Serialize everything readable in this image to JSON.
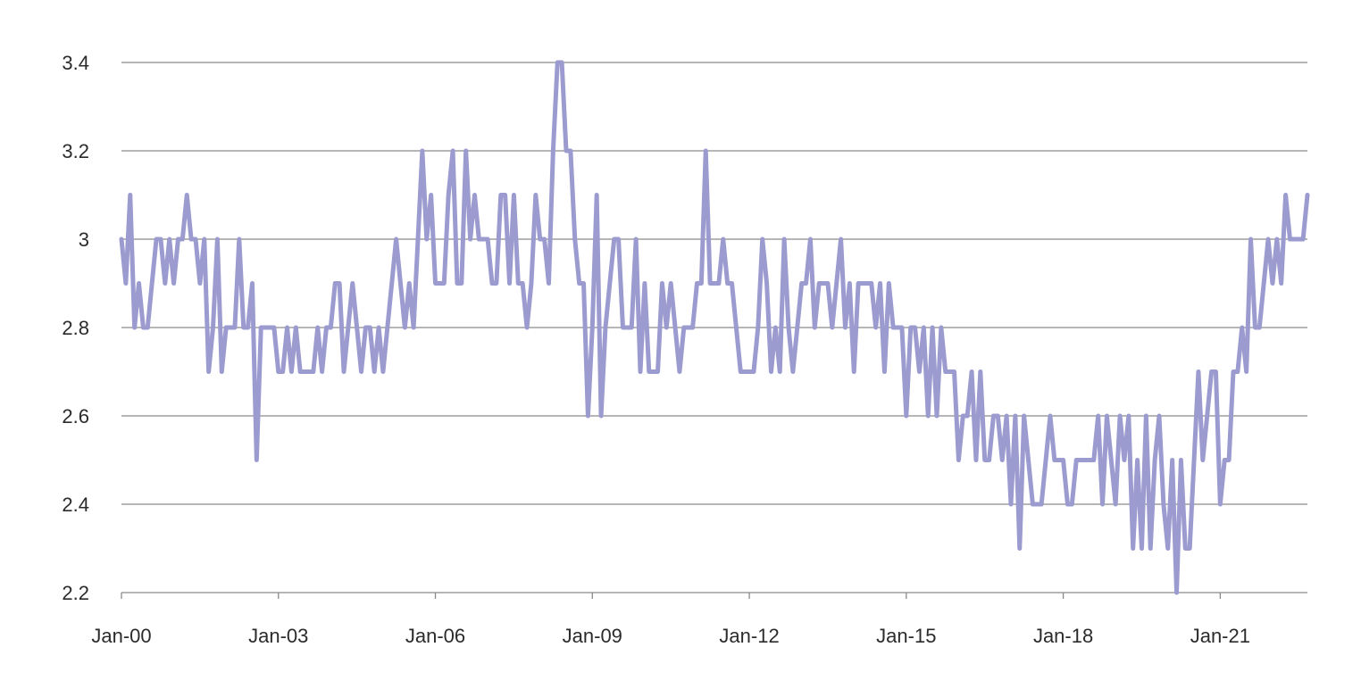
{
  "chart_data": {
    "type": "line",
    "title": "",
    "xlabel": "",
    "ylabel": "",
    "ylim": [
      2.2,
      3.4
    ],
    "grid": true,
    "legend": "none",
    "y_ticks": [
      "2.2",
      "2.4",
      "2.6",
      "2.8",
      "3",
      "3.2",
      "3.4"
    ],
    "x_ticks": [
      "Jan-00",
      "Jan-03",
      "Jan-06",
      "Jan-09",
      "Jan-12",
      "Jan-15",
      "Jan-18",
      "Jan-21"
    ],
    "x_start": "Jan-00",
    "x_end": "Jul-22",
    "colors": {
      "series": "#9b9bd0",
      "grid": "#8a8a8a",
      "text": "#2b2b2b"
    },
    "series": [
      {
        "values": [
          3.0,
          2.9,
          3.1,
          2.8,
          2.9,
          2.8,
          2.8,
          2.9,
          3.0,
          3.0,
          2.9,
          3.0,
          2.9,
          3.0,
          3.0,
          3.1,
          3.0,
          3.0,
          2.9,
          3.0,
          2.7,
          2.8,
          3.0,
          2.7,
          2.8,
          2.8,
          2.8,
          3.0,
          2.8,
          2.8,
          2.9,
          2.5,
          2.8,
          2.8,
          2.8,
          2.8,
          2.7,
          2.7,
          2.8,
          2.7,
          2.8,
          2.7,
          2.7,
          2.7,
          2.7,
          2.8,
          2.7,
          2.8,
          2.8,
          2.9,
          2.9,
          2.7,
          2.8,
          2.9,
          2.8,
          2.7,
          2.8,
          2.8,
          2.7,
          2.8,
          2.7,
          2.8,
          2.9,
          3.0,
          2.9,
          2.8,
          2.9,
          2.8,
          3.0,
          3.2,
          3.0,
          3.1,
          2.9,
          2.9,
          2.9,
          3.1,
          3.2,
          2.9,
          2.9,
          3.2,
          3.0,
          3.1,
          3.0,
          3.0,
          3.0,
          2.9,
          2.9,
          3.1,
          3.1,
          2.9,
          3.1,
          2.9,
          2.9,
          2.8,
          2.9,
          3.1,
          3.0,
          3.0,
          2.9,
          3.2,
          3.4,
          3.4,
          3.2,
          3.2,
          3.0,
          2.9,
          2.9,
          2.6,
          2.8,
          3.1,
          2.6,
          2.8,
          2.9,
          3.0,
          3.0,
          2.8,
          2.8,
          2.8,
          3.0,
          2.7,
          2.9,
          2.7,
          2.7,
          2.7,
          2.9,
          2.8,
          2.9,
          2.8,
          2.7,
          2.8,
          2.8,
          2.8,
          2.9,
          2.9,
          3.2,
          2.9,
          2.9,
          2.9,
          3.0,
          2.9,
          2.9,
          2.8,
          2.7,
          2.7,
          2.7,
          2.7,
          2.8,
          3.0,
          2.9,
          2.7,
          2.8,
          2.7,
          3.0,
          2.8,
          2.7,
          2.8,
          2.9,
          2.9,
          3.0,
          2.8,
          2.9,
          2.9,
          2.9,
          2.8,
          2.9,
          3.0,
          2.8,
          2.9,
          2.7,
          2.9,
          2.9,
          2.9,
          2.9,
          2.8,
          2.9,
          2.7,
          2.9,
          2.8,
          2.8,
          2.8,
          2.6,
          2.8,
          2.8,
          2.7,
          2.8,
          2.6,
          2.8,
          2.6,
          2.8,
          2.7,
          2.7,
          2.7,
          2.5,
          2.6,
          2.6,
          2.7,
          2.5,
          2.7,
          2.5,
          2.5,
          2.6,
          2.6,
          2.5,
          2.6,
          2.4,
          2.6,
          2.3,
          2.6,
          2.5,
          2.4,
          2.4,
          2.4,
          2.5,
          2.6,
          2.5,
          2.5,
          2.5,
          2.4,
          2.4,
          2.5,
          2.5,
          2.5,
          2.5,
          2.5,
          2.6,
          2.4,
          2.6,
          2.5,
          2.4,
          2.6,
          2.5,
          2.6,
          2.3,
          2.5,
          2.3,
          2.6,
          2.3,
          2.5,
          2.6,
          2.4,
          2.3,
          2.5,
          2.2,
          2.5,
          2.3,
          2.3,
          2.5,
          2.7,
          2.5,
          2.6,
          2.7,
          2.7,
          2.4,
          2.5,
          2.5,
          2.7,
          2.7,
          2.8,
          2.7,
          3.0,
          2.8,
          2.8,
          2.9,
          3.0,
          2.9,
          3.0,
          2.9,
          3.1,
          3.0,
          3.0,
          3.0,
          3.0,
          3.1
        ]
      }
    ]
  }
}
